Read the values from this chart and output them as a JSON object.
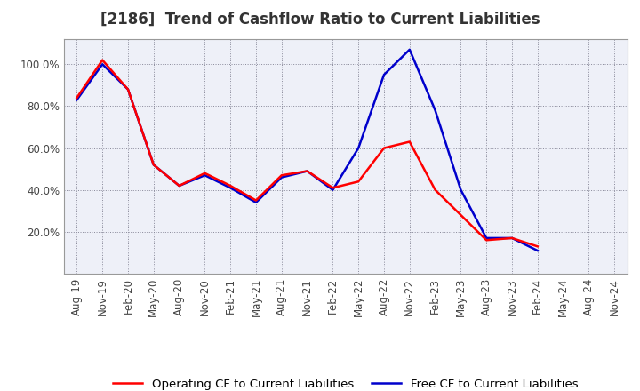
{
  "title": "[2186]  Trend of Cashflow Ratio to Current Liabilities",
  "x_labels": [
    "Aug-19",
    "Nov-19",
    "Feb-20",
    "May-20",
    "Aug-20",
    "Nov-20",
    "Feb-21",
    "May-21",
    "Aug-21",
    "Nov-21",
    "Feb-22",
    "May-22",
    "Aug-22",
    "Nov-22",
    "Feb-23",
    "May-23",
    "Aug-23",
    "Nov-23",
    "Feb-24",
    "May-24",
    "Aug-24",
    "Nov-24"
  ],
  "operating_cf": [
    0.84,
    1.02,
    0.88,
    0.52,
    0.42,
    0.48,
    0.42,
    0.35,
    0.47,
    0.49,
    0.41,
    0.44,
    0.6,
    0.63,
    0.4,
    null,
    0.16,
    0.17,
    0.13,
    null,
    null,
    null
  ],
  "free_cf": [
    0.83,
    1.0,
    0.88,
    0.52,
    0.42,
    0.47,
    0.41,
    0.34,
    0.46,
    0.49,
    0.4,
    0.6,
    0.95,
    1.07,
    0.78,
    0.4,
    0.17,
    0.17,
    0.11,
    null,
    null,
    null
  ],
  "operating_cf_color": "#ff0000",
  "free_cf_color": "#0000cc",
  "background_color": "#ffffff",
  "plot_background": "#eef0f8",
  "grid_color": "#888899",
  "ylim": [
    0.0,
    1.12
  ],
  "yticks": [
    0.2,
    0.4,
    0.6,
    0.8,
    1.0
  ],
  "legend_labels": [
    "Operating CF to Current Liabilities",
    "Free CF to Current Liabilities"
  ],
  "line_width": 1.8,
  "title_fontsize": 12,
  "tick_fontsize": 8.5,
  "legend_fontsize": 9.5
}
